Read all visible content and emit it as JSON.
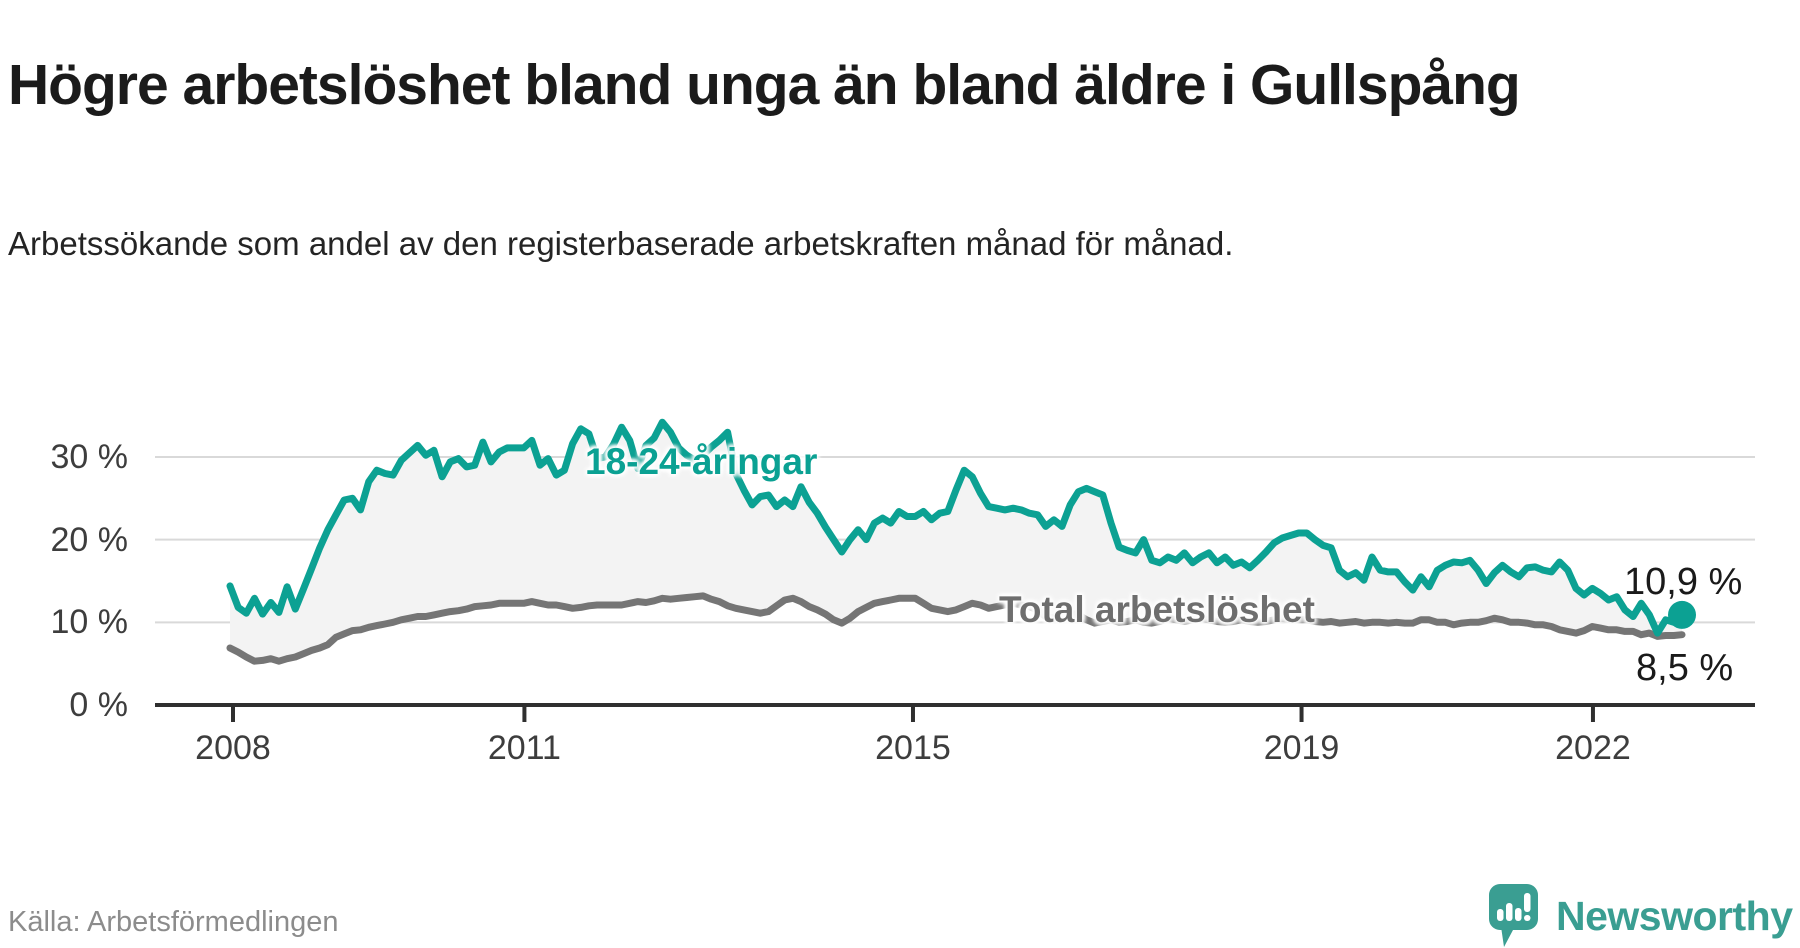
{
  "header": {
    "title": "Högre arbetslöshet bland unga än bland äldre i Gullspång",
    "subtitle": "Arbetssökande som andel av den registerbaserade arbetskraften månad för månad."
  },
  "footer": {
    "source": "Källa: Arbetsförmedlingen",
    "logo_text": "Newsworthy"
  },
  "colors": {
    "young_line": "#0ca193",
    "total_line": "#757575",
    "area_fill": "#f3f3f3",
    "gridline": "#d9d9d9",
    "axis": "#2f2f2f",
    "logo_teal": "#3a9e92"
  },
  "chart_data": {
    "type": "line",
    "title": "Högre arbetslöshet bland unga än bland äldre i Gullspång",
    "xlabel": "",
    "ylabel": "Arbetssökande som andel av den registerbaserade arbetskraften",
    "x_start": "2008-01",
    "x_end": "2022-11",
    "x_unit": "month",
    "ylim": [
      0,
      35
    ],
    "grid": "horizontal",
    "legend_position": "inline-labels",
    "y_ticks": [
      {
        "label": "0 %",
        "value": 0
      },
      {
        "label": "10 %",
        "value": 10
      },
      {
        "label": "20 %",
        "value": 20
      },
      {
        "label": "30 %",
        "value": 30
      }
    ],
    "x_ticks": [
      {
        "label": "2008",
        "year": 2008
      },
      {
        "label": "2011",
        "year": 2011
      },
      {
        "label": "2015",
        "year": 2015
      },
      {
        "label": "2019",
        "year": 2019
      },
      {
        "label": "2022",
        "year": 2022
      }
    ],
    "series": [
      {
        "name": "18-24-åringar",
        "color": "#0ca193",
        "end_label": "10,9 %",
        "end_value": 10.9,
        "values": [
          14.4,
          11.8,
          11.1,
          12.9,
          11.0,
          12.4,
          11.2,
          14.3,
          11.6,
          14.0,
          16.5,
          19.0,
          21.2,
          23.0,
          24.8,
          25.0,
          23.6,
          27.0,
          28.4,
          28.0,
          27.8,
          29.6,
          30.5,
          31.4,
          30.2,
          30.8,
          27.6,
          29.4,
          29.8,
          28.8,
          29.0,
          31.8,
          29.4,
          30.6,
          31.1,
          31.1,
          31.1,
          32.0,
          29.0,
          29.8,
          27.8,
          28.4,
          31.6,
          33.4,
          32.8,
          29.8,
          30.0,
          31.5,
          33.6,
          32.0,
          28.6,
          31.4,
          32.3,
          34.2,
          33.0,
          31.1,
          30.2,
          29.6,
          30.2,
          31.2,
          32.0,
          33.0,
          28.0,
          26.0,
          24.2,
          25.2,
          25.4,
          24.0,
          24.8,
          24.0,
          26.4,
          24.5,
          23.2,
          21.5,
          20.0,
          18.5,
          20.0,
          21.2,
          20.0,
          22.0,
          22.6,
          22.0,
          23.4,
          22.8,
          22.8,
          23.4,
          22.4,
          23.2,
          23.4,
          26.0,
          28.4,
          27.6,
          25.6,
          24.0,
          23.8,
          23.6,
          23.8,
          23.6,
          23.2,
          23.0,
          21.6,
          22.4,
          21.6,
          24.2,
          25.8,
          26.2,
          25.8,
          25.4,
          22.0,
          19.1,
          18.7,
          18.4,
          20.0,
          17.5,
          17.2,
          17.9,
          17.5,
          18.4,
          17.2,
          17.9,
          18.4,
          17.2,
          17.9,
          16.9,
          17.3,
          16.6,
          17.5,
          18.5,
          19.6,
          20.2,
          20.5,
          20.8,
          20.8,
          20.0,
          19.3,
          19.0,
          16.3,
          15.5,
          16.0,
          15.1,
          17.9,
          16.3,
          16.1,
          16.1,
          14.9,
          13.9,
          15.5,
          14.3,
          16.3,
          16.9,
          17.3,
          17.2,
          17.5,
          16.3,
          14.7,
          16.0,
          16.9,
          16.1,
          15.5,
          16.6,
          16.7,
          16.3,
          16.1,
          17.3,
          16.3,
          14.1,
          13.3,
          14.1,
          13.5,
          12.7,
          13.1,
          11.5,
          10.7,
          12.3,
          10.9,
          8.7,
          10.3,
          10.0,
          10.9
        ]
      },
      {
        "name": "Total arbetslöshet",
        "color": "#757575",
        "end_label": "8,5 %",
        "end_value": 8.5,
        "values": [
          6.9,
          6.4,
          5.8,
          5.3,
          5.4,
          5.6,
          5.3,
          5.6,
          5.8,
          6.2,
          6.6,
          6.9,
          7.3,
          8.2,
          8.6,
          9.0,
          9.1,
          9.4,
          9.6,
          9.8,
          10.0,
          10.3,
          10.5,
          10.7,
          10.7,
          10.9,
          11.1,
          11.3,
          11.4,
          11.6,
          11.9,
          12.0,
          12.1,
          12.3,
          12.3,
          12.3,
          12.3,
          12.5,
          12.3,
          12.1,
          12.1,
          11.9,
          11.7,
          11.8,
          12.0,
          12.1,
          12.1,
          12.1,
          12.1,
          12.3,
          12.5,
          12.4,
          12.6,
          12.9,
          12.8,
          12.9,
          13.0,
          13.1,
          13.2,
          12.8,
          12.5,
          12.0,
          11.7,
          11.5,
          11.3,
          11.1,
          11.3,
          12.0,
          12.7,
          12.9,
          12.5,
          11.9,
          11.5,
          11.0,
          10.3,
          9.9,
          10.5,
          11.3,
          11.8,
          12.3,
          12.5,
          12.7,
          12.9,
          12.9,
          12.9,
          12.3,
          11.7,
          11.5,
          11.3,
          11.5,
          11.9,
          12.3,
          12.1,
          11.7,
          11.9,
          12.1,
          12.3,
          12.1,
          11.9,
          11.5,
          10.7,
          10.5,
          10.7,
          11.1,
          10.9,
          10.3,
          9.9,
          10.1,
          10.3,
          10.0,
          10.1,
          10.3,
          10.0,
          9.9,
          10.1,
          10.5,
          10.3,
          10.1,
          10.3,
          10.5,
          10.3,
          10.1,
          10.0,
          10.1,
          10.3,
          10.1,
          10.0,
          10.1,
          10.3,
          10.5,
          10.3,
          10.3,
          10.3,
          10.1,
          10.0,
          10.1,
          9.9,
          10.0,
          10.1,
          9.9,
          10.0,
          10.0,
          9.9,
          10.0,
          9.9,
          9.9,
          10.3,
          10.3,
          10.0,
          10.0,
          9.7,
          9.9,
          10.0,
          10.0,
          10.2,
          10.5,
          10.3,
          10.0,
          10.0,
          9.9,
          9.7,
          9.7,
          9.5,
          9.1,
          8.9,
          8.7,
          9.0,
          9.5,
          9.3,
          9.1,
          9.1,
          8.9,
          8.9,
          8.5,
          8.7,
          8.3,
          8.4,
          8.4,
          8.5
        ]
      }
    ]
  }
}
